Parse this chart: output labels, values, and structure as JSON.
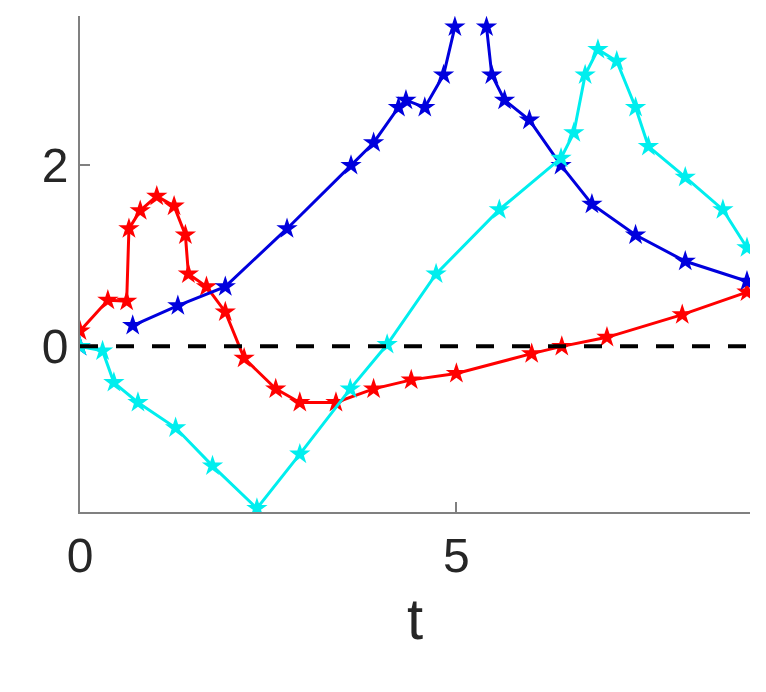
{
  "chart_data": {
    "type": "line",
    "xlabel": "t",
    "xlim": [
      0,
      8.9
    ],
    "ylim": [
      -1.83,
      3.65
    ],
    "xticks": [
      0,
      5
    ],
    "yticks": [
      0,
      2
    ],
    "grid": false,
    "marker": "star",
    "line_style": "solid",
    "ref_lines": [
      {
        "axis": "y",
        "value": 0,
        "color": "#000000",
        "line_style": "dashed"
      }
    ],
    "series": [
      {
        "color": "#ff0000",
        "x": [
          0,
          0.37,
          0.62,
          0.65,
          0.8,
          1.02,
          1.25,
          1.4,
          1.44,
          1.68,
          1.93,
          2.18,
          2.6,
          2.92,
          3.4,
          3.9,
          4.4,
          5,
          6,
          6.4,
          7,
          8,
          8.86
        ],
        "values": [
          0.17,
          0.51,
          0.5,
          1.3,
          1.5,
          1.66,
          1.55,
          1.23,
          0.8,
          0.66,
          0.38,
          -0.13,
          -0.47,
          -0.62,
          -0.62,
          -0.47,
          -0.37,
          -0.3,
          -0.08,
          0,
          0.1,
          0.35,
          0.6
        ]
      },
      {
        "color": "#0000dd",
        "x": [
          0,
          0.3,
          0.7,
          1.3,
          1.93,
          2.75,
          3.6,
          3.9,
          4.23,
          4.33,
          4.58,
          4.83,
          4.98,
          5.2,
          5.4,
          5.47,
          5.64,
          5.97,
          6.39,
          6.8,
          7.38,
          8.04,
          8.86
        ],
        "values": [
          0,
          null,
          0.23,
          0.45,
          0.66,
          1.3,
          2.0,
          2.25,
          2.64,
          2.72,
          2.64,
          3.0,
          3.53,
          null,
          3.53,
          3.0,
          2.72,
          2.5,
          2.0,
          1.57,
          1.23,
          0.94,
          0.72
        ]
      },
      {
        "color": "#00eeee",
        "x": [
          0,
          0.3,
          0.45,
          0.77,
          1.27,
          1.76,
          2.35,
          2.92,
          3.59,
          4.08,
          4.73,
          5.57,
          6.39,
          6.56,
          6.71,
          6.88,
          7.13,
          7.38,
          7.55,
          8.04,
          8.54,
          8.86
        ],
        "values": [
          0,
          -0.05,
          -0.4,
          -0.62,
          -0.9,
          -1.32,
          -1.79,
          -1.19,
          -0.47,
          0.02,
          0.8,
          1.51,
          2.08,
          2.36,
          3.0,
          3.28,
          3.15,
          2.64,
          2.21,
          1.87,
          1.51,
          1.09
        ]
      }
    ]
  }
}
